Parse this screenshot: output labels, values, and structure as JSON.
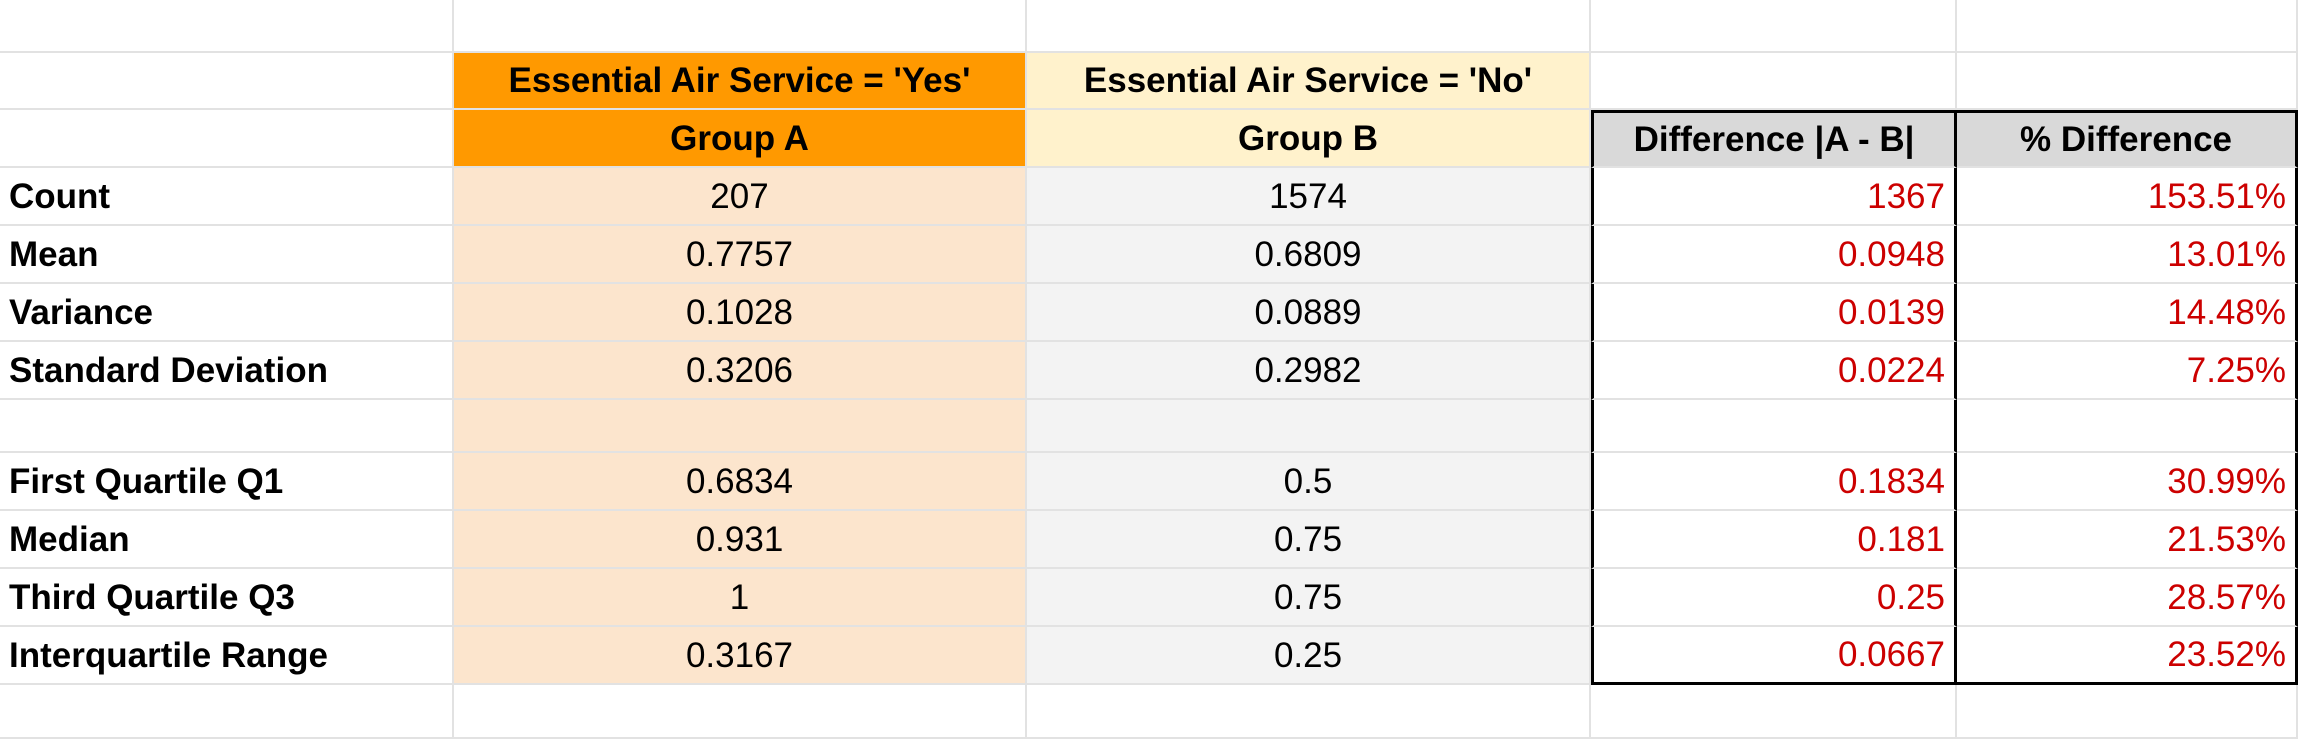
{
  "headers": {
    "group_a_condition": "Essential Air Service = 'Yes'",
    "group_b_condition": "Essential Air Service = 'No'",
    "group_a_label": "Group A",
    "group_b_label": "Group B",
    "difference_label": "Difference |A - B|",
    "pct_difference_label": "% Difference"
  },
  "stats_top": [
    {
      "label": "Count",
      "a": "207",
      "b": "1574",
      "diff": "1367",
      "pct": "153.51%"
    },
    {
      "label": "Mean",
      "a": "0.7757",
      "b": "0.6809",
      "diff": "0.0948",
      "pct": "13.01%"
    },
    {
      "label": "Variance",
      "a": "0.1028",
      "b": "0.0889",
      "diff": "0.0139",
      "pct": "14.48%"
    },
    {
      "label": "Standard Deviation",
      "a": "0.3206",
      "b": "0.2982",
      "diff": "0.0224",
      "pct": "7.25%"
    }
  ],
  "stats_bottom": [
    {
      "label": "First Quartile Q1",
      "a": "0.6834",
      "b": "0.5",
      "diff": "0.1834",
      "pct": "30.99%"
    },
    {
      "label": "Median",
      "a": "0.931",
      "b": "0.75",
      "diff": "0.181",
      "pct": "21.53%"
    },
    {
      "label": "Third Quartile Q3",
      "a": "1",
      "b": "0.75",
      "diff": "0.25",
      "pct": "28.57%"
    },
    {
      "label": "Interquartile Range",
      "a": "0.3167",
      "b": "0.25",
      "diff": "0.0667",
      "pct": "23.52%"
    }
  ],
  "colors": {
    "group_a_header": "#ff9900",
    "group_a_fill": "#fce5cd",
    "group_b_header": "#fff2cc",
    "group_b_fill": "#f3f3f3",
    "diff_header": "#d9d9d9",
    "diff_text": "#cc0000"
  }
}
